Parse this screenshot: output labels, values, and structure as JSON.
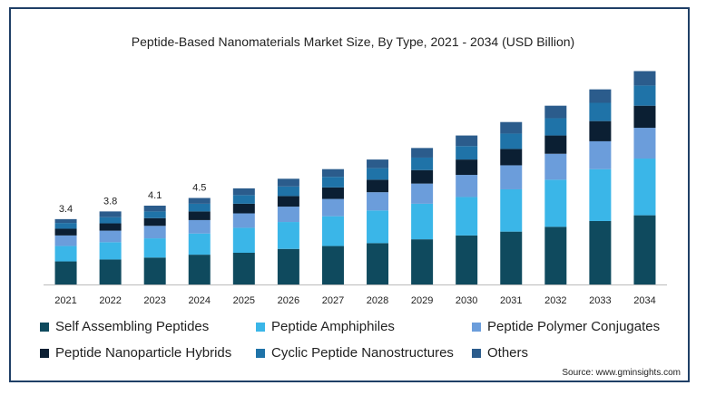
{
  "chart_data": {
    "type": "bar",
    "stacked": true,
    "title": "Peptide-Based Nanomaterials Market Size, By Type, 2021 - 2034 (USD Billion)",
    "categories": [
      "2021",
      "2022",
      "2023",
      "2024",
      "2025",
      "2026",
      "2027",
      "2028",
      "2029",
      "2030",
      "2031",
      "2032",
      "2033",
      "2034"
    ],
    "totals_labels": [
      "3.4",
      "3.8",
      "4.1",
      "4.5",
      "",
      "",
      "",
      "",
      "",
      "",
      "",
      "",
      "",
      ""
    ],
    "series": [
      {
        "name": "Self Assembling Peptides",
        "color": "#0f4a5e",
        "values": [
          1.2,
          1.3,
          1.4,
          1.55,
          1.65,
          1.85,
          2.0,
          2.15,
          2.35,
          2.55,
          2.75,
          3.0,
          3.3,
          3.6
        ]
      },
      {
        "name": "Peptide Amphiphiles",
        "color": "#3ab6e8",
        "values": [
          0.8,
          0.9,
          1.0,
          1.1,
          1.3,
          1.4,
          1.55,
          1.7,
          1.85,
          2.0,
          2.2,
          2.45,
          2.7,
          2.95
        ]
      },
      {
        "name": "Peptide Polymer Conjugates",
        "color": "#6b9ddb",
        "values": [
          0.55,
          0.6,
          0.65,
          0.7,
          0.75,
          0.8,
          0.9,
          0.95,
          1.05,
          1.15,
          1.25,
          1.35,
          1.45,
          1.6
        ]
      },
      {
        "name": "Peptide Nanoparticle Hybrids",
        "color": "#0b1f33",
        "values": [
          0.35,
          0.38,
          0.4,
          0.45,
          0.5,
          0.55,
          0.6,
          0.65,
          0.7,
          0.8,
          0.85,
          0.95,
          1.05,
          1.15
        ]
      },
      {
        "name": "Cyclic Peptide Nanostructures",
        "color": "#1f73a8",
        "values": [
          0.3,
          0.32,
          0.35,
          0.4,
          0.45,
          0.5,
          0.55,
          0.6,
          0.65,
          0.7,
          0.8,
          0.9,
          0.95,
          1.05
        ]
      },
      {
        "name": "Others",
        "color": "#2b5c8c",
        "values": [
          0.2,
          0.3,
          0.3,
          0.3,
          0.35,
          0.4,
          0.4,
          0.45,
          0.5,
          0.55,
          0.6,
          0.65,
          0.7,
          0.75
        ]
      }
    ],
    "ylim": [
      0,
      11.5
    ],
    "grid": false,
    "legend_position": "bottom"
  },
  "source": "Source: www.gminsights.com"
}
